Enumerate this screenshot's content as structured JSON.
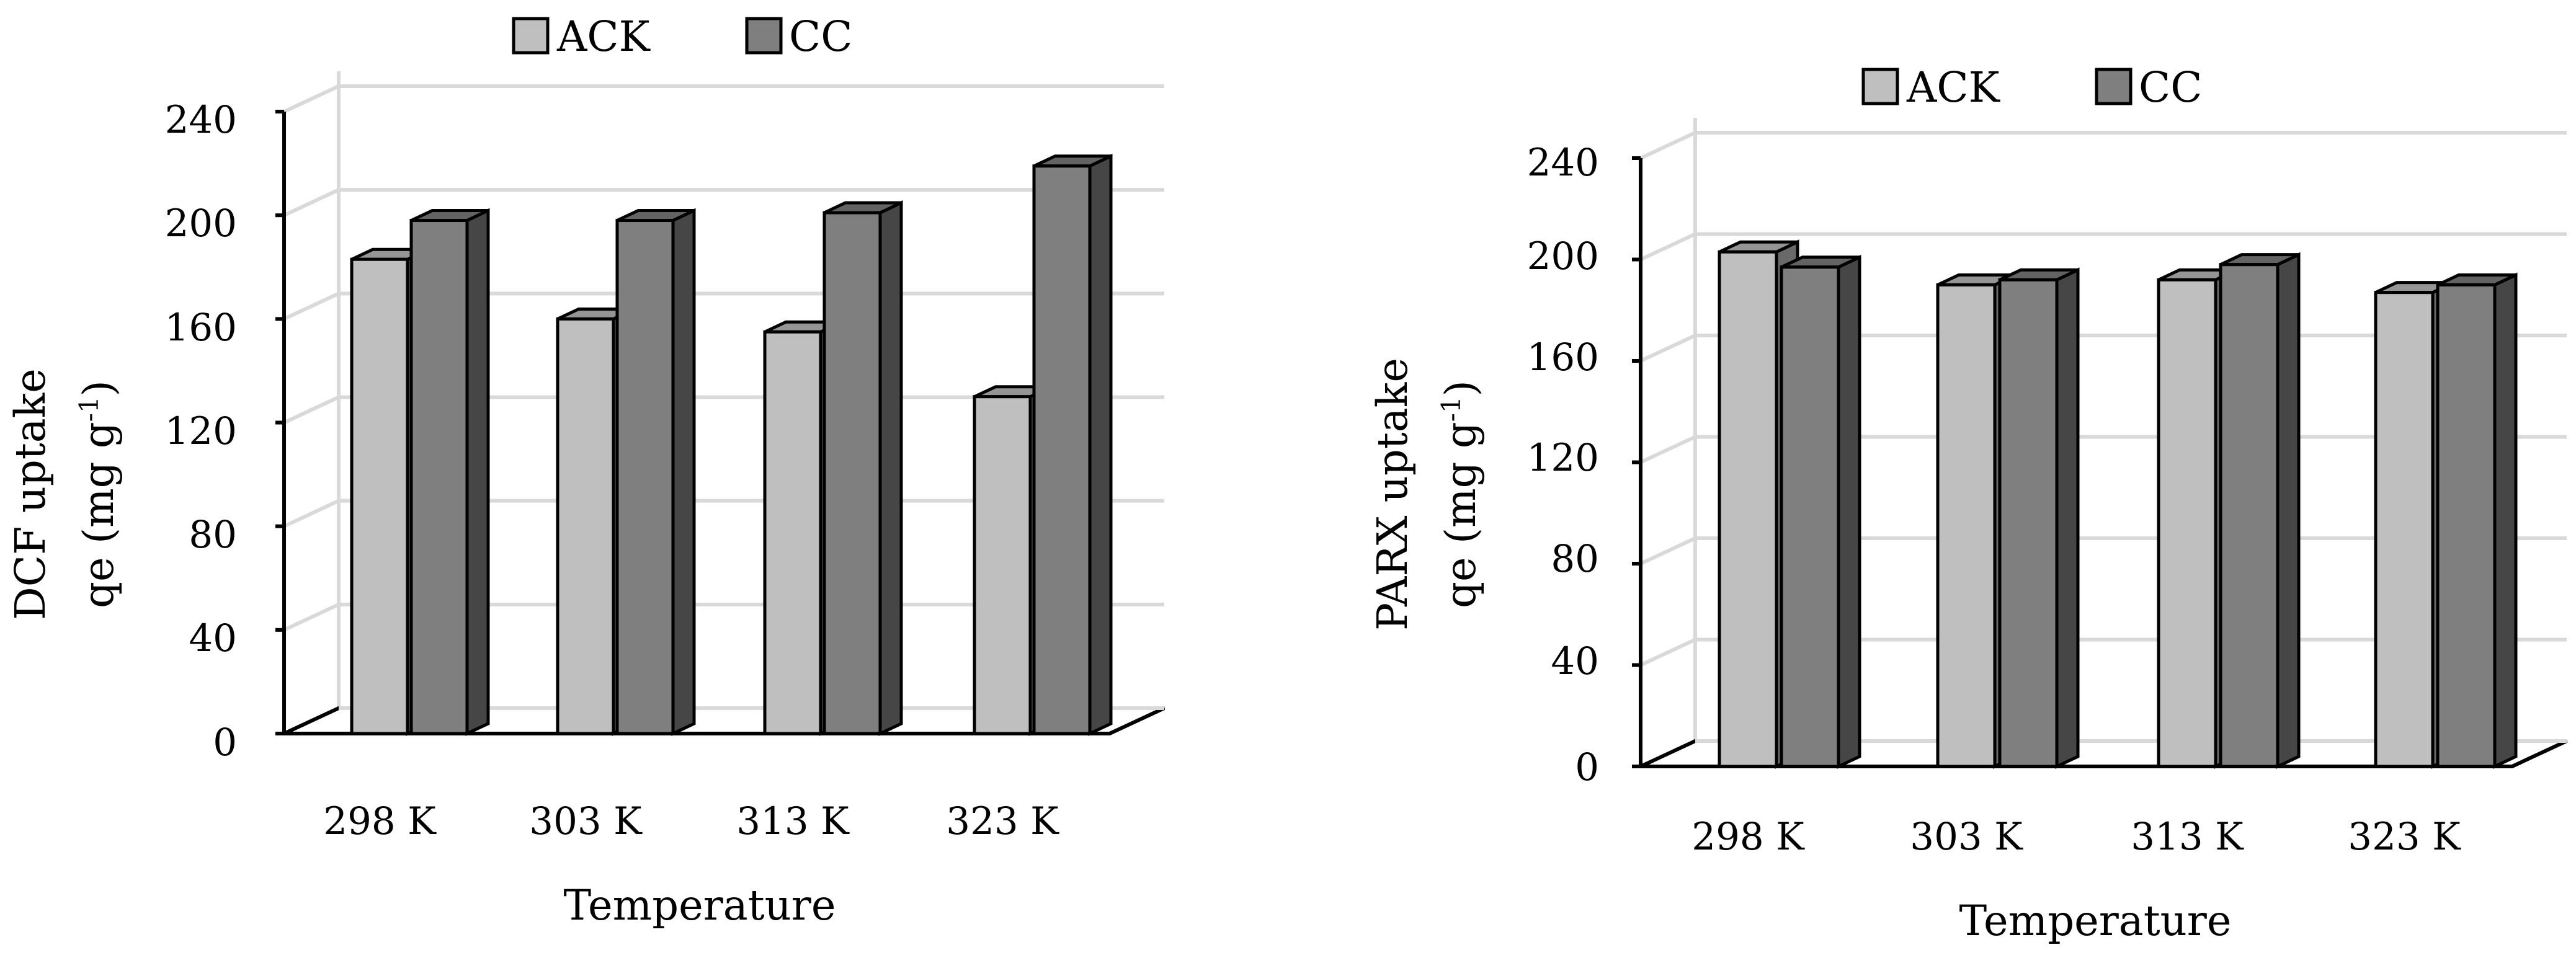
{
  "chart_data": [
    {
      "type": "bar",
      "categories": [
        "298 K",
        "303 K",
        "313 K",
        "323 K"
      ],
      "series": [
        {
          "name": "ACK",
          "values": [
            183,
            160,
            155,
            130
          ],
          "color": "#bfbfbf"
        },
        {
          "name": "CC",
          "values": [
            198,
            198,
            201,
            219
          ],
          "color": "#7f7f7f"
        }
      ],
      "title": "",
      "xlabel": "Temperature",
      "ylabel_line1": "DCF uptake",
      "ylabel_line2_prefix": "qe (mg g",
      "ylabel_sup": "-1",
      "ylabel_line2_suffix": ")",
      "yticks": [
        "0",
        "40",
        "80",
        "120",
        "160",
        "200",
        "240"
      ],
      "ylim": [
        0,
        240
      ],
      "legend_position": "top"
    },
    {
      "type": "bar",
      "categories": [
        "298 K",
        "303 K",
        "313 K",
        "323 K"
      ],
      "series": [
        {
          "name": "ACK",
          "values": [
            203,
            190,
            192,
            187
          ],
          "color": "#bfbfbf"
        },
        {
          "name": "CC",
          "values": [
            197,
            192,
            198,
            190
          ],
          "color": "#7f7f7f"
        }
      ],
      "title": "",
      "xlabel": "Temperature",
      "ylabel_line1": "PARX uptake",
      "ylabel_line2_prefix": "qe (mg g",
      "ylabel_sup": "-1",
      "ylabel_line2_suffix": ")",
      "yticks": [
        "0",
        "40",
        "80",
        "120",
        "160",
        "200",
        "240"
      ],
      "ylim": [
        0,
        240
      ],
      "legend_position": "top"
    }
  ]
}
